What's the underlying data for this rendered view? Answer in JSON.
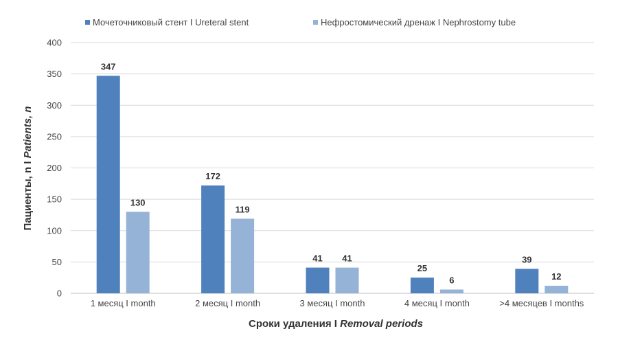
{
  "chart_data": {
    "type": "bar",
    "categories": [
      "1 месяц I month",
      "2 месяц I month",
      "3 месяц I month",
      "4 месяц I month",
      ">4 месяцев I months"
    ],
    "series": [
      {
        "name": "Мочеточниковый стент I Ureteral stent",
        "color": "#4f81bd",
        "values": [
          347,
          172,
          41,
          25,
          39
        ]
      },
      {
        "name": "Нефростомический дренаж I Nephrostomy tube",
        "color": "#95b3d7",
        "values": [
          130,
          119,
          41,
          6,
          12
        ]
      }
    ],
    "xlabel": {
      "regular": "Сроки удаления I ",
      "italic": "Removal periods"
    },
    "ylabel": {
      "regular": "Пациенты, n I ",
      "italic": "Patients, n"
    },
    "ylim": [
      0,
      400
    ],
    "yticks": [
      0,
      50,
      100,
      150,
      200,
      250,
      300,
      350,
      400
    ],
    "grid": true,
    "legend_position": "top-center"
  }
}
